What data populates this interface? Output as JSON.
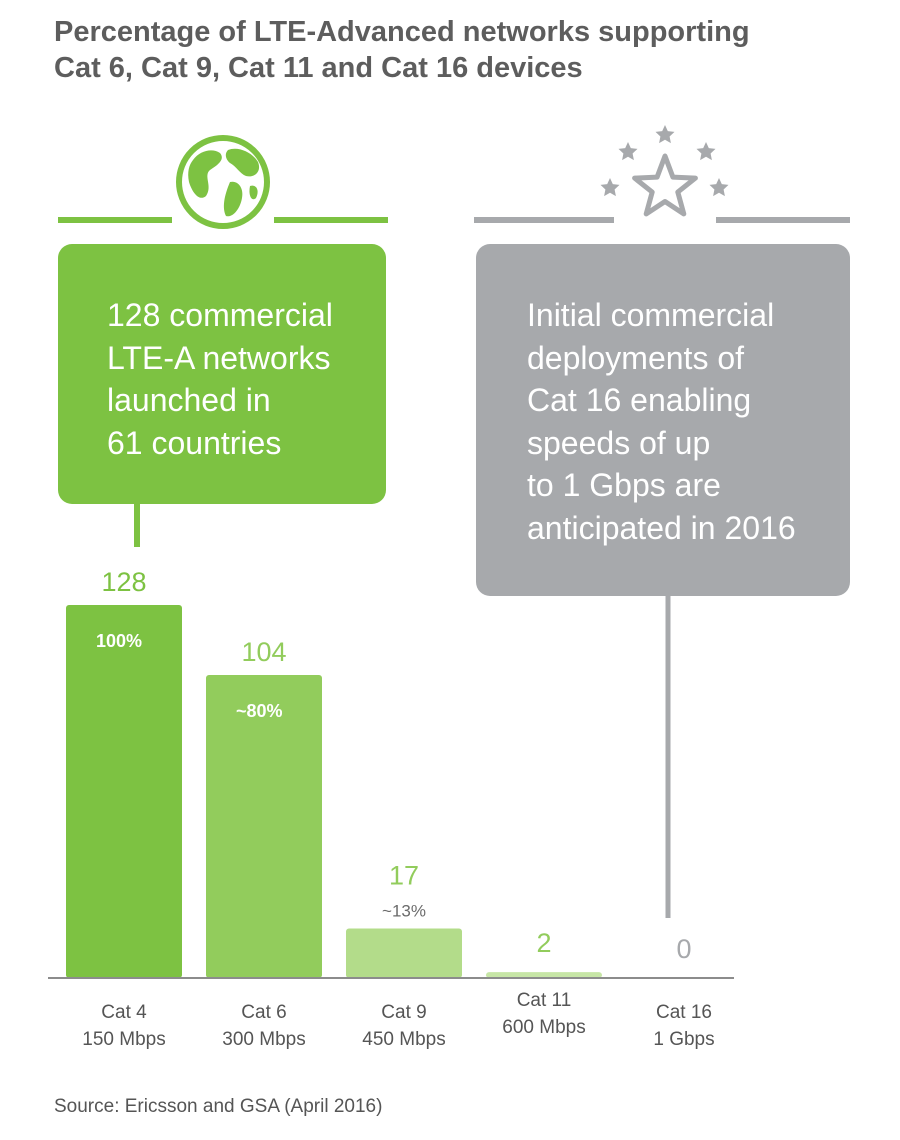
{
  "title_lines": [
    "Percentage of LTE-Advanced networks supporting",
    "Cat 6, Cat 9, Cat 11 and Cat 16 devices"
  ],
  "callouts": {
    "left": {
      "lines": [
        "128 commercial",
        "LTE-A networks",
        "launched in",
        "61 countries"
      ],
      "color": "#7dc242",
      "icon": "globe-icon"
    },
    "right": {
      "lines": [
        "Initial commercial",
        "deployments of",
        "Cat 16 enabling",
        "speeds of up",
        "to 1 Gbps are",
        "anticipated in 2016"
      ],
      "color": "#a7a9ac",
      "icon": "stars-icon"
    }
  },
  "chart_data": {
    "type": "bar",
    "categories": [
      [
        "Cat 4",
        "150 Mbps"
      ],
      [
        "Cat 6",
        "300 Mbps"
      ],
      [
        "Cat 9",
        "450 Mbps"
      ],
      [
        "Cat 11",
        "600 Mbps"
      ],
      [
        "Cat 16",
        "1 Gbps"
      ]
    ],
    "values": [
      128,
      104,
      17,
      2,
      0
    ],
    "value_labels": [
      "128",
      "104",
      "17",
      "2",
      "0"
    ],
    "percent_labels": [
      "100%",
      "~80%",
      "~13%",
      "",
      ""
    ],
    "colors": [
      "#7dc242",
      "#92cc5c",
      "#b3dc8a",
      "#c7e6a6",
      "#c7e6a6"
    ],
    "value_label_colors": [
      "#7dc242",
      "#92cc5c",
      "#92cc5c",
      "#92cc5c",
      "#a7a9ac"
    ],
    "ylim": [
      0,
      128
    ]
  },
  "source": "Source: Ericsson and GSA (April 2016)"
}
